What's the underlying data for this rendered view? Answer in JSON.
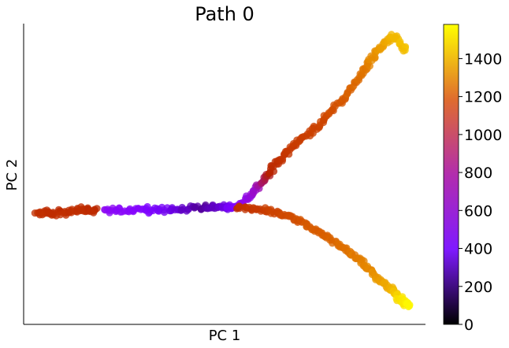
{
  "chart_data": {
    "type": "scatter",
    "title": "Path 0",
    "xlabel": "PC 1",
    "ylabel": "PC 2",
    "xlim": [
      0,
      1
    ],
    "ylim": [
      0,
      1
    ],
    "grid": false,
    "colormap": "gnuplot",
    "colorbar": {
      "range": [
        0,
        1580
      ],
      "ticks": [
        0,
        200,
        400,
        600,
        800,
        1000,
        1200,
        1400
      ],
      "tick_labels": [
        "0",
        "200",
        "400",
        "600",
        "800",
        "1000",
        "1200",
        "1400"
      ]
    },
    "branches": [
      {
        "x": [
          0.03,
          0.08,
          0.14,
          0.18
        ],
        "y": [
          0.37,
          0.37,
          0.38,
          0.38
        ],
        "c": [
          900,
          880,
          900,
          860
        ]
      },
      {
        "x": [
          0.2,
          0.28,
          0.36,
          0.44,
          0.5,
          0.53
        ],
        "y": [
          0.38,
          0.38,
          0.38,
          0.39,
          0.39,
          0.39
        ],
        "c": [
          470,
          440,
          300,
          160,
          260,
          420
        ]
      },
      {
        "x": [
          0.53,
          0.58,
          0.62,
          0.67,
          0.73,
          0.79,
          0.84,
          0.88,
          0.92,
          0.95
        ],
        "y": [
          0.39,
          0.45,
          0.52,
          0.59,
          0.66,
          0.74,
          0.83,
          0.91,
          0.96,
          0.91
        ],
        "c": [
          450,
          560,
          860,
          960,
          1000,
          1100,
          1200,
          1320,
          1420,
          1440
        ]
      },
      {
        "x": [
          0.53,
          0.6,
          0.66,
          0.72,
          0.78,
          0.83,
          0.87,
          0.91,
          0.94,
          0.96
        ],
        "y": [
          0.39,
          0.38,
          0.36,
          0.32,
          0.27,
          0.22,
          0.17,
          0.12,
          0.08,
          0.06
        ],
        "c": [
          880,
          980,
          1050,
          1120,
          1170,
          1240,
          1300,
          1380,
          1520,
          1570
        ]
      }
    ]
  }
}
